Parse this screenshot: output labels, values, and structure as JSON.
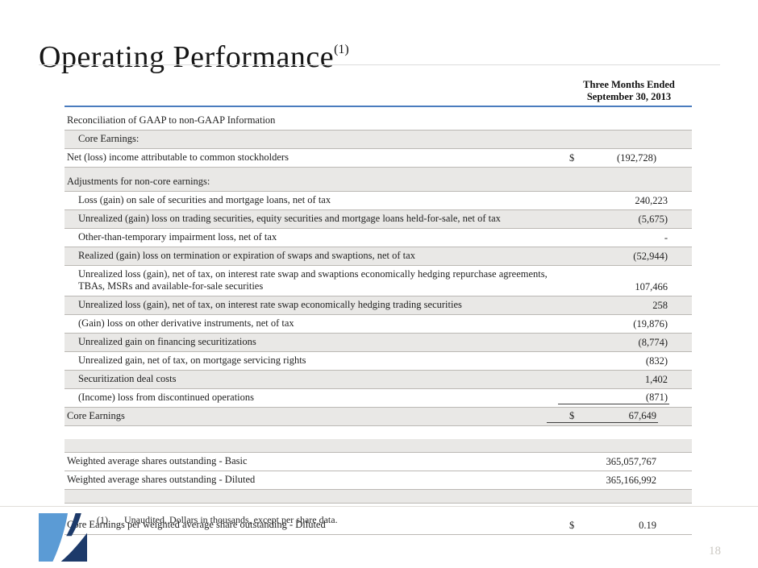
{
  "slide": {
    "title": "Operating Performance",
    "title_superscript": "(1)",
    "page_number": "18"
  },
  "table": {
    "header": {
      "line1": "Three Months Ended",
      "line2": "September 30, 2013"
    },
    "rows": [
      {
        "label": "Reconciliation of GAAP to non-GAAP Information",
        "indent": 0,
        "shaded": false
      },
      {
        "label": "Core Earnings:",
        "indent": 1,
        "shaded": true
      },
      {
        "label": "Net (loss) income attributable to common stockholders",
        "dollar": "$",
        "value": "(192,728)",
        "indent": 0,
        "shaded": false
      },
      {
        "label": "Adjustments for non-core earnings:",
        "indent": 0,
        "shaded": true,
        "tall": true
      },
      {
        "label": "Loss (gain) on sale of securities and mortgage loans, net of tax",
        "value": "240,223",
        "indent": 1,
        "shaded": false
      },
      {
        "label": "Unrealized (gain) loss on trading securities, equity securities and mortgage loans held-for-sale, net of tax",
        "value": "(5,675)",
        "indent": 1,
        "shaded": true
      },
      {
        "label": "Other-than-temporary impairment loss, net of tax",
        "value": "-",
        "indent": 1,
        "shaded": false
      },
      {
        "label": "Realized (gain) loss on termination or expiration of swaps and swaptions, net of tax",
        "value": "(52,944)",
        "indent": 1,
        "shaded": true
      },
      {
        "label": "Unrealized loss (gain), net of tax, on interest rate swap and swaptions economically hedging repurchase agreements, TBAs, MSRs and available-for-sale securities",
        "value": "107,466",
        "indent": 1,
        "shaded": false
      },
      {
        "label": "Unrealized loss (gain), net of tax, on interest rate swap economically hedging trading securities",
        "value": "258",
        "indent": 1,
        "shaded": true
      },
      {
        "label": "(Gain) loss on other derivative instruments, net of tax",
        "value": "(19,876)",
        "indent": 1,
        "shaded": false
      },
      {
        "label": "Unrealized gain on financing securitizations",
        "value": "(8,774)",
        "indent": 1,
        "shaded": true
      },
      {
        "label": "Unrealized gain, net of tax, on mortgage servicing rights",
        "value": "(832)",
        "indent": 1,
        "shaded": false
      },
      {
        "label": "Securitization deal costs",
        "value": "1,402",
        "indent": 1,
        "shaded": true
      },
      {
        "label": "(Income) loss from discontinued operations",
        "value": "(871)",
        "indent": 1,
        "shaded": false,
        "rule_below_value": true
      },
      {
        "label": "Core Earnings",
        "dollar": "$",
        "value": "67,649",
        "indent": 0,
        "shaded": true,
        "rule_below_value": true
      },
      {
        "spacer": true,
        "height": 14,
        "shaded": false
      },
      {
        "spacer": true,
        "height": 8,
        "shaded": true
      },
      {
        "label": "Weighted average shares outstanding - Basic",
        "value": "365,057,767",
        "indent": 0,
        "shaded": false
      },
      {
        "label": "Weighted average shares outstanding - Diluted",
        "value": "365,166,992",
        "indent": 0,
        "shaded": false
      },
      {
        "spacer": true,
        "height": 9,
        "shaded": true
      },
      {
        "spacer": true,
        "height": 9,
        "shaded": false
      },
      {
        "label": "Core Earnings per weighted average share outstanding - Diluted",
        "dollar": "$",
        "value": "0.19",
        "indent": 0,
        "shaded": false
      }
    ]
  },
  "footnote": {
    "marker": "(1)",
    "text": "Unaudited. Dollars in thousands, except per share data."
  },
  "colors": {
    "accent_blue": "#4a7cbe",
    "row_shade": "#e9e8e6",
    "logo_light_blue": "#5b9bd5",
    "logo_navy": "#1d3a6a"
  }
}
